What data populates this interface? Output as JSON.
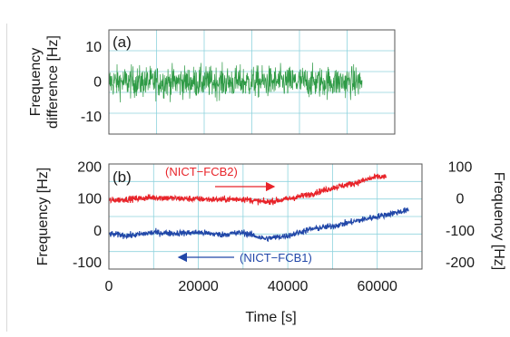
{
  "colors": {
    "grid": "#8fd3de",
    "panel_a": "#2e9a45",
    "series_red": "#e8242a",
    "series_blue": "#2147a8",
    "text": "#1a1a1a"
  },
  "chart_data": [
    {
      "type": "line",
      "panel_label": "(a)",
      "ylabel": [
        "Frequency",
        "difference [Hz]"
      ],
      "xlim": [
        0,
        70000
      ],
      "ylim": [
        -15,
        15
      ],
      "yticks": [
        -10,
        0,
        10
      ],
      "grid": true,
      "series": [
        {
          "color": "#2e9a45",
          "x_range": [
            0,
            62000
          ],
          "mean": 0,
          "noise_amplitude": 3.2
        }
      ]
    },
    {
      "type": "line",
      "panel_label": "(b)",
      "xlabel": "Time [s]",
      "ylabel": "Frequency [Hz]",
      "ylabel_right": "Frequency [Hz]",
      "xlim": [
        0,
        70000
      ],
      "xticks": [
        0,
        20000,
        40000,
        60000
      ],
      "ylim": [
        -120,
        210
      ],
      "yticks": [
        -100,
        0,
        100,
        200
      ],
      "ylim_right": [
        -220,
        110
      ],
      "yticks_right": [
        -200,
        -100,
        0,
        100
      ],
      "grid": true,
      "series": [
        {
          "name": "(NICT−FCB2)",
          "color": "#e8242a",
          "axis": "left",
          "x": [
            0,
            5000,
            10000,
            15000,
            20000,
            25000,
            30000,
            35000,
            40000,
            45000,
            50000,
            55000,
            60000,
            62000
          ],
          "y": [
            95,
            100,
            105,
            102,
            100,
            98,
            100,
            90,
            100,
            115,
            135,
            150,
            170,
            168
          ]
        },
        {
          "name": "(NICT−FCB1)",
          "color": "#2147a8",
          "axis": "left",
          "x": [
            0,
            5000,
            10000,
            15000,
            20000,
            25000,
            30000,
            35000,
            40000,
            45000,
            50000,
            55000,
            60000,
            65000,
            67000
          ],
          "y": [
            -10,
            -15,
            -5,
            -8,
            -5,
            -12,
            -5,
            -25,
            -15,
            5,
            15,
            30,
            45,
            60,
            65
          ]
        }
      ],
      "annotations": [
        {
          "text": "(NICT−FCB2)",
          "color": "#e8242a",
          "arrow": "right"
        },
        {
          "text": "(NICT−FCB1)",
          "color": "#2147a8",
          "arrow": "left"
        }
      ]
    }
  ]
}
